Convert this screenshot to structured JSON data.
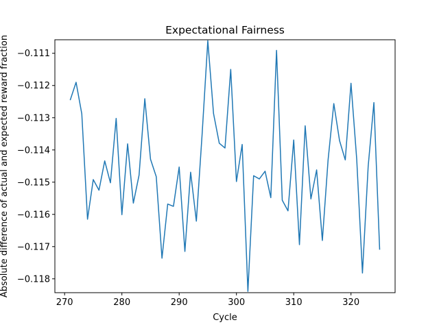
{
  "chart_data": {
    "type": "line",
    "title": "Expectational Fairness",
    "xlabel": "Cycle",
    "ylabel": "Absolute difference of actual and expected reward fraction",
    "xlim": [
      268.3,
      327.7
    ],
    "ylim": [
      -0.11843,
      -0.11058
    ],
    "xticks": [
      270,
      280,
      290,
      300,
      310,
      320
    ],
    "yticks": [
      -0.118,
      -0.117,
      -0.116,
      -0.115,
      -0.114,
      -0.113,
      -0.112,
      -0.111
    ],
    "ytick_labels": [
      "−0.118",
      "−0.117",
      "−0.116",
      "−0.115",
      "−0.114",
      "−0.113",
      "−0.112",
      "−0.111"
    ],
    "grid": false,
    "line_color": "#1f77b4",
    "series": [
      {
        "x": [
          271,
          272,
          273,
          274,
          275,
          276,
          277,
          278,
          279,
          280,
          281,
          282,
          283,
          284,
          285,
          286,
          287,
          288,
          289,
          290,
          291,
          292,
          293,
          294,
          295,
          296,
          297,
          298,
          299,
          300,
          301,
          302,
          303,
          304,
          305,
          306,
          307,
          308,
          309,
          310,
          311,
          312,
          313,
          314,
          315,
          316,
          317,
          318,
          319,
          320,
          321,
          322,
          323,
          324,
          325
        ],
        "values": [
          -0.11244,
          -0.1119,
          -0.11288,
          -0.11615,
          -0.11492,
          -0.11525,
          -0.11434,
          -0.11502,
          -0.11302,
          -0.11601,
          -0.11381,
          -0.11565,
          -0.11478,
          -0.11241,
          -0.11429,
          -0.11483,
          -0.11736,
          -0.11568,
          -0.11575,
          -0.11453,
          -0.11715,
          -0.11469,
          -0.11621,
          -0.11353,
          -0.11061,
          -0.11287,
          -0.11379,
          -0.11394,
          -0.1115,
          -0.11498,
          -0.11383,
          -0.11839,
          -0.1148,
          -0.1149,
          -0.11466,
          -0.11548,
          -0.11091,
          -0.11556,
          -0.11589,
          -0.11369,
          -0.11694,
          -0.11325,
          -0.11552,
          -0.11462,
          -0.11681,
          -0.11431,
          -0.11256,
          -0.11371,
          -0.11431,
          -0.11193,
          -0.11429,
          -0.11782,
          -0.11451,
          -0.11253,
          -0.11708
        ]
      }
    ]
  }
}
